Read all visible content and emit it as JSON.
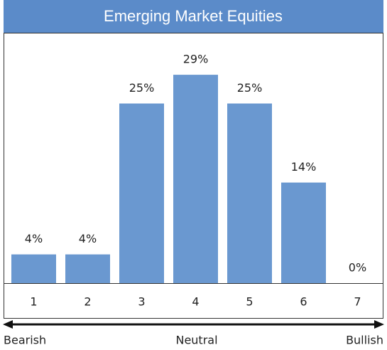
{
  "chart_data": {
    "type": "bar",
    "title": "Emerging Market Equities",
    "categories": [
      "1",
      "2",
      "3",
      "4",
      "5",
      "6",
      "7"
    ],
    "values": [
      4,
      4,
      25,
      29,
      25,
      14,
      0
    ],
    "value_labels": [
      "4%",
      "4%",
      "25%",
      "29%",
      "25%",
      "14%",
      "0%"
    ],
    "color": "#6a98d0",
    "annotations": [
      "Bearish",
      "Neutral",
      "Bullish"
    ]
  }
}
